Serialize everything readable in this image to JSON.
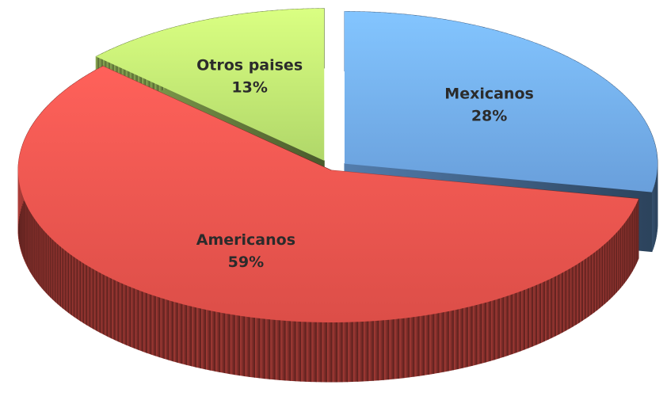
{
  "chart_data": {
    "type": "pie3d",
    "categories": [
      "Mexicanos",
      "Americanos",
      "Otros paises"
    ],
    "values": [
      28,
      59,
      13
    ],
    "value_labels": [
      "28%",
      "59%",
      "13%"
    ],
    "colors": [
      "#6fa7e6",
      "#e8524c",
      "#b9e26e"
    ]
  }
}
